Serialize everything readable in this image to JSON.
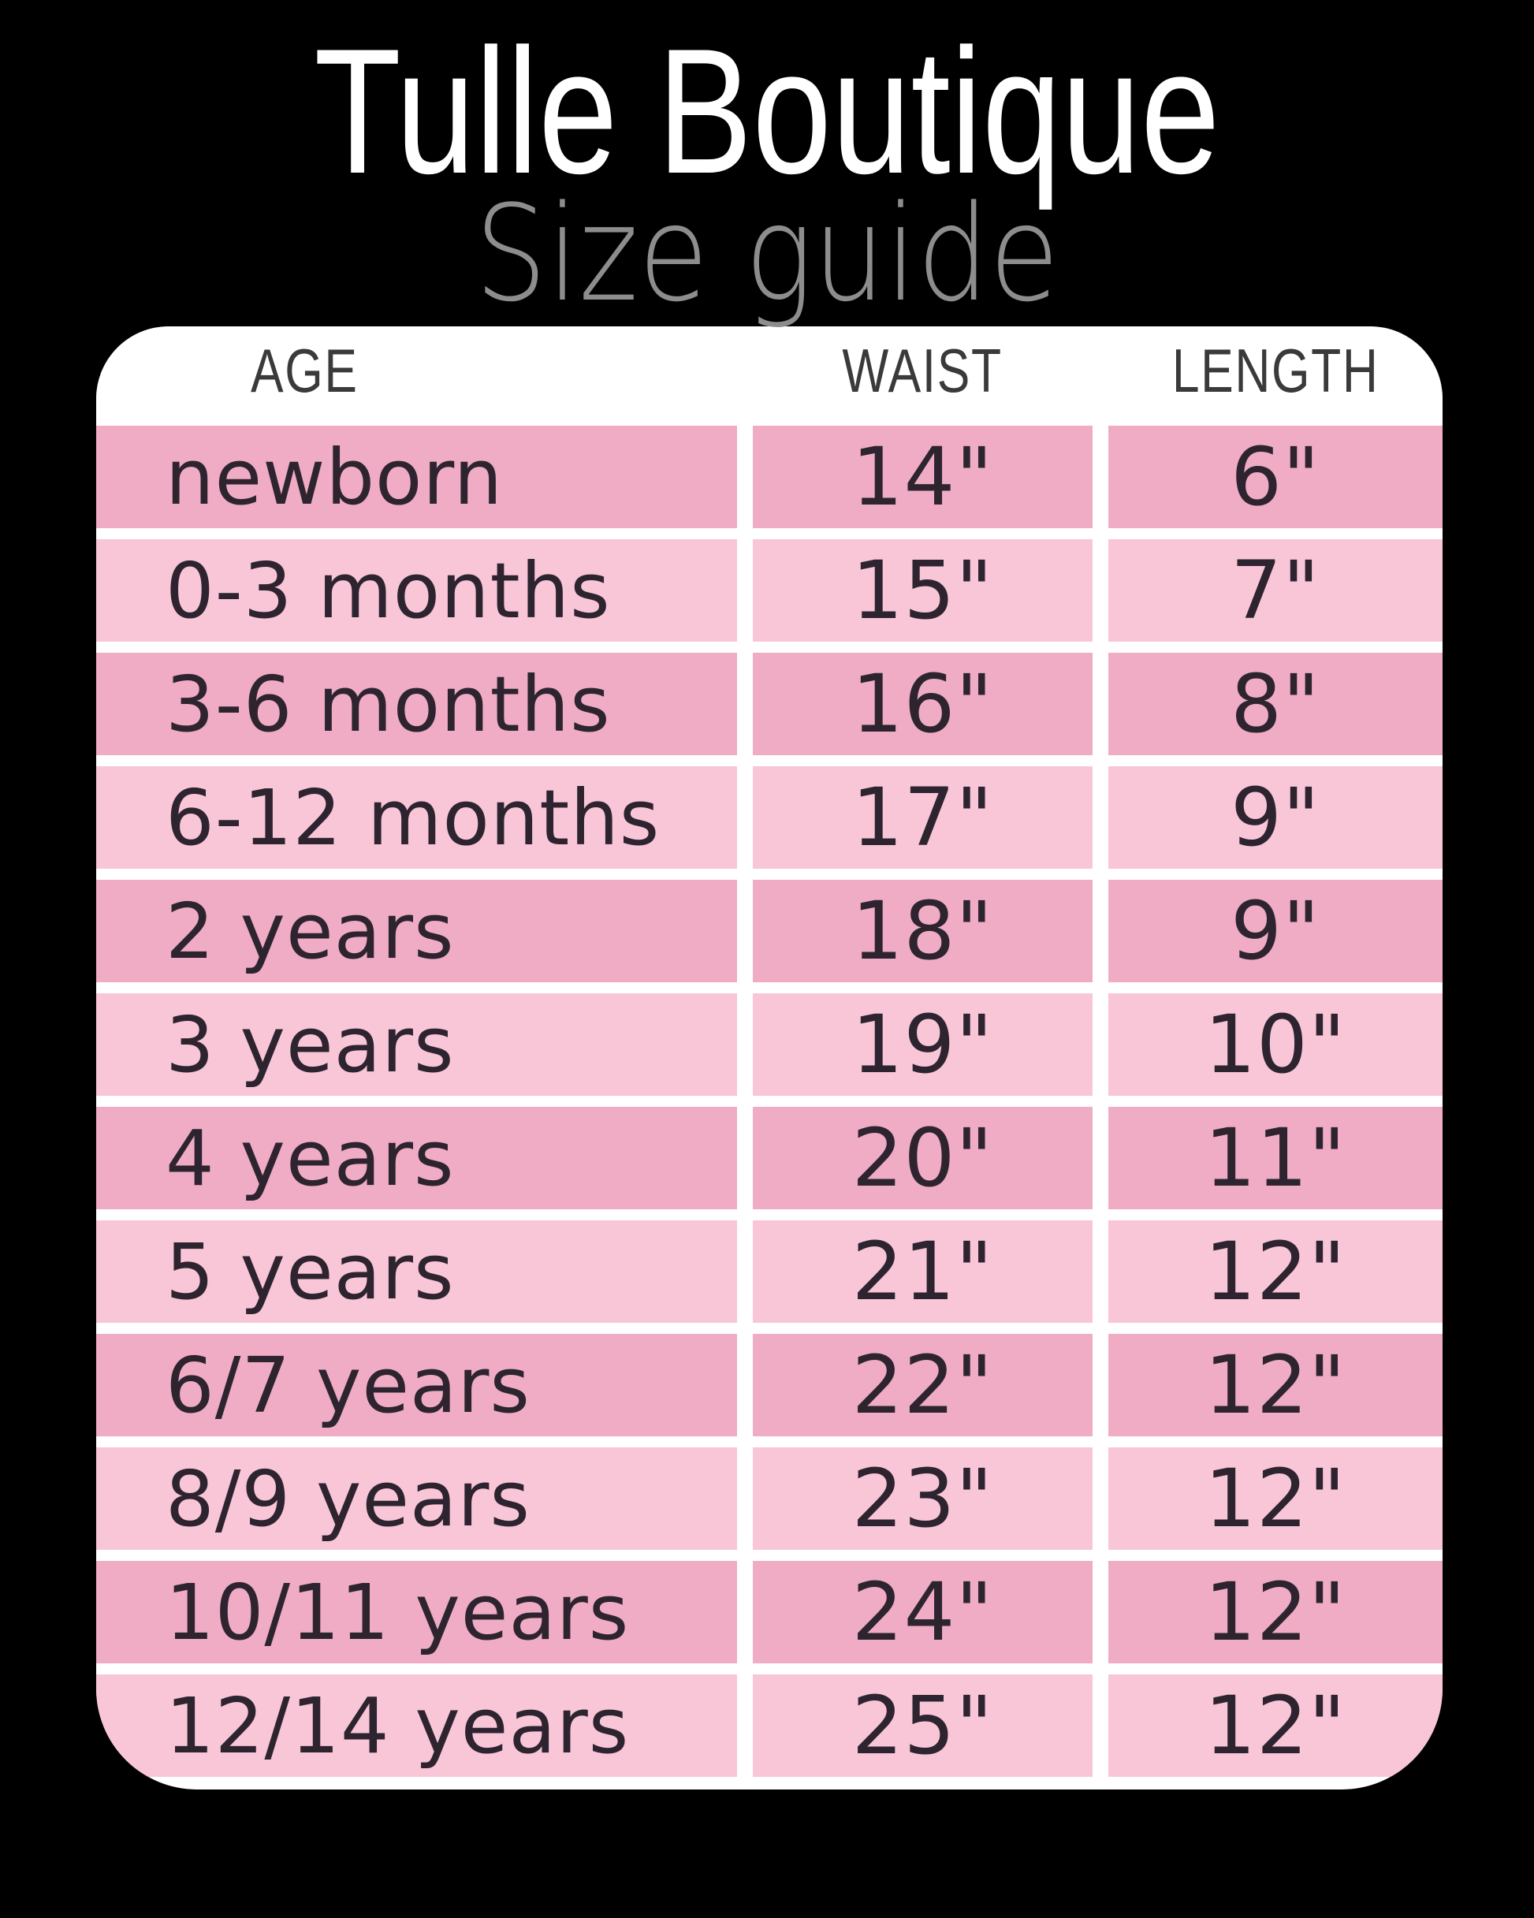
{
  "page": {
    "background_color": "#000000",
    "title": "Tulle Boutique",
    "subtitle": "Size guide"
  },
  "table": {
    "colors": {
      "card_background": "#ffffff",
      "row_dark_pink": "#efacc4",
      "row_light_pink": "#f9c6d8",
      "cell_text": "#2e2430",
      "header_text": "#3a3a3a"
    },
    "columns": [
      "AGE",
      "WAIST",
      "LENGTH"
    ],
    "rows": [
      {
        "age": "newborn",
        "waist": "14\"",
        "length": "6\""
      },
      {
        "age": "0-3 months",
        "waist": "15\"",
        "length": "7\""
      },
      {
        "age": "3-6 months",
        "waist": "16\"",
        "length": "8\""
      },
      {
        "age": "6-12 months",
        "waist": "17\"",
        "length": "9\""
      },
      {
        "age": "2 years",
        "waist": "18\"",
        "length": "9\""
      },
      {
        "age": "3 years",
        "waist": "19\"",
        "length": "10\""
      },
      {
        "age": "4 years",
        "waist": "20\"",
        "length": "11\""
      },
      {
        "age": "5 years",
        "waist": "21\"",
        "length": "12\""
      },
      {
        "age": "6/7 years",
        "waist": "22\"",
        "length": "12\""
      },
      {
        "age": "8/9 years",
        "waist": "23\"",
        "length": "12\""
      },
      {
        "age": "10/11 years",
        "waist": "24\"",
        "length": "12\""
      },
      {
        "age": "12/14 years",
        "waist": "25\"",
        "length": "12\""
      }
    ]
  },
  "chart_data": {
    "type": "table",
    "title": "Tulle Boutique Size guide",
    "columns": [
      "AGE",
      "WAIST",
      "LENGTH"
    ],
    "rows": [
      [
        "newborn",
        "14\"",
        "6\""
      ],
      [
        "0-3 months",
        "15\"",
        "7\""
      ],
      [
        "3-6 months",
        "16\"",
        "8\""
      ],
      [
        "6-12 months",
        "17\"",
        "9\""
      ],
      [
        "2 years",
        "18\"",
        "9\""
      ],
      [
        "3 years",
        "19\"",
        "10\""
      ],
      [
        "4 years",
        "20\"",
        "11\""
      ],
      [
        "5 years",
        "21\"",
        "12\""
      ],
      [
        "6/7 years",
        "22\"",
        "12\""
      ],
      [
        "8/9 years",
        "23\"",
        "12\""
      ],
      [
        "10/11 years",
        "24\"",
        "12\""
      ],
      [
        "12/14 years",
        "25\"",
        "12\""
      ]
    ],
    "layout_hints": {
      "row_striping": [
        "dark",
        "light"
      ],
      "waist_unit": "inches",
      "length_unit": "inches"
    }
  }
}
